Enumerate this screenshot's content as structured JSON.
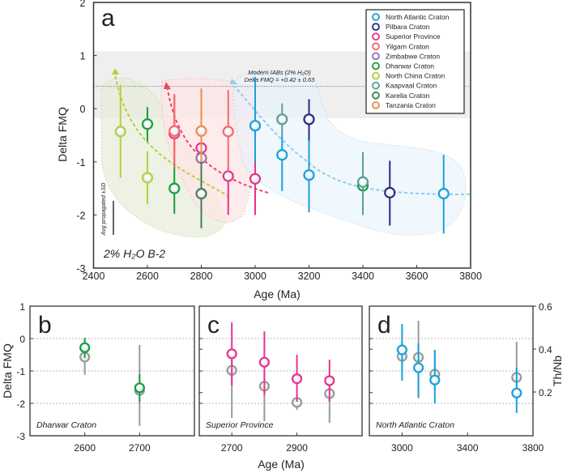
{
  "chart_data": [
    {
      "panel": "a",
      "type": "scatter",
      "panel_label": "a",
      "xlabel": "Age (Ma)",
      "ylabel": "Delta FMQ",
      "xlim": [
        2400,
        3800
      ],
      "ylim": [
        -3,
        2
      ],
      "xticks": [
        2400,
        2600,
        2800,
        3000,
        3200,
        3400,
        3600,
        3800
      ],
      "yticks": [
        -3,
        -2,
        -1,
        0,
        1,
        2
      ],
      "annotation_band": {
        "label_line1": "Modern IABs (2% H₂O)",
        "label_line2": "Delta FMQ = +0.42 ± 0.63",
        "center": 0.42,
        "range": [
          -0.18,
          1.08
        ]
      },
      "scale_bar_label": "Avg propagated ±SD",
      "condition_label": "2% H₂O B-2",
      "legend": "top-right",
      "series": [
        {
          "name": "North Atlantic Craton",
          "color": "#1aa0dc",
          "points": [
            [
              3000,
              -0.32,
              0.6,
              -2.0
            ],
            [
              3100,
              -0.87,
              -0.5,
              -1.55
            ],
            [
              3200,
              -1.25,
              -0.6,
              -1.95
            ],
            [
              3700,
              -1.6,
              -0.87,
              -2.35
            ]
          ]
        },
        {
          "name": "Pilbara Craton",
          "color": "#2e2a80",
          "points": [
            [
              3200,
              -0.2,
              0.18,
              -0.6
            ],
            [
              3500,
              -1.58,
              -0.98,
              -2.2
            ]
          ]
        },
        {
          "name": "Superior Province",
          "color": "#e8338a",
          "points": [
            [
              2700,
              -0.47,
              0.25,
              -1.1
            ],
            [
              2800,
              -0.74,
              -0.5,
              -1.1
            ],
            [
              2900,
              -1.27,
              -1.1,
              -2.0
            ],
            [
              3000,
              -1.32,
              -1.0,
              -2.0
            ]
          ]
        },
        {
          "name": "Yilgarn Craton",
          "color": "#f26a6a",
          "points": [
            [
              2700,
              -0.42,
              0.28,
              -1.1
            ],
            [
              2900,
              -0.43,
              0.35,
              -1.2
            ]
          ]
        },
        {
          "name": "Zimbabwe Craton",
          "color": "#a070b0",
          "points": [
            [
              2800,
              -0.93,
              -0.7,
              -1.2
            ]
          ]
        },
        {
          "name": "Dharwar Craton",
          "color": "#1a9e3f",
          "points": [
            [
              2600,
              -0.29,
              0.03,
              -0.62
            ],
            [
              2700,
              -1.5,
              -1.1,
              -1.98
            ],
            [
              3400,
              -1.45,
              -1.2,
              -1.7
            ]
          ]
        },
        {
          "name": "North China Craton",
          "color": "#b5cf3a",
          "points": [
            [
              2500,
              -0.43,
              0.45,
              -1.3
            ],
            [
              2600,
              -1.3,
              -0.8,
              -1.8
            ]
          ]
        },
        {
          "name": "Kaapvaal Craton",
          "color": "#5a9e9a",
          "points": [
            [
              3100,
              -0.2,
              0.1,
              -0.5
            ],
            [
              3400,
              -1.38,
              -0.82,
              -2.0
            ]
          ]
        },
        {
          "name": "Karelia Craton",
          "color": "#4a7a5a",
          "points": [
            [
              2800,
              -1.6,
              -0.85,
              -2.25
            ]
          ]
        },
        {
          "name": "Tanzania Craton",
          "color": "#f08c4a",
          "points": [
            [
              2800,
              -0.42,
              0.38,
              -1.0
            ]
          ]
        }
      ]
    },
    {
      "panel": "b",
      "type": "scatter",
      "panel_label": "b",
      "caption": "Dharwar Craton",
      "ylabel": "Delta FMQ",
      "xlim": [
        2500,
        2800
      ],
      "ylim": [
        -3,
        1
      ],
      "xticks": [
        2600,
        2700
      ],
      "yticks": [
        -3,
        -2,
        -1,
        0,
        1
      ],
      "series": [
        {
          "color": "#9a9a9a",
          "points": [
            [
              2600,
              -0.57,
              -0.05,
              -1.12
            ],
            [
              2700,
              -1.6,
              -0.2,
              -2.7
            ]
          ]
        },
        {
          "color": "#1a9e3f",
          "points": [
            [
              2600,
              -0.28,
              0.02,
              -0.6
            ],
            [
              2700,
              -1.52,
              -1.1,
              -1.95
            ]
          ]
        }
      ]
    },
    {
      "panel": "c",
      "type": "scatter",
      "panel_label": "c",
      "caption": "Superior Province",
      "xlabel": "Age (Ma)",
      "xlim": [
        2600,
        3100
      ],
      "ylim": [
        -3,
        1
      ],
      "xticks": [
        2700,
        2900
      ],
      "series": [
        {
          "color": "#9a9a9a",
          "points": [
            [
              2700,
              -0.98,
              -0.5,
              -2.45
            ],
            [
              2800,
              -1.47,
              -1.0,
              -2.55
            ],
            [
              2900,
              -1.97,
              -1.7,
              -2.2
            ],
            [
              3000,
              -1.7,
              -1.2,
              -2.6
            ]
          ]
        },
        {
          "color": "#e8338a",
          "points": [
            [
              2700,
              -0.47,
              0.5,
              -1.45
            ],
            [
              2800,
              -0.73,
              0.22,
              -1.75
            ],
            [
              2900,
              -1.24,
              -0.5,
              -1.95
            ],
            [
              3000,
              -1.3,
              -0.65,
              -1.95
            ]
          ]
        }
      ]
    },
    {
      "panel": "d",
      "type": "scatter",
      "panel_label": "d",
      "caption": "North Atlantic Craton",
      "xlim": [
        2800,
        3800
      ],
      "ylim": [
        -3,
        1
      ],
      "xticks": [
        3000,
        3400,
        3800
      ],
      "right_ylabel": "Th/Nb",
      "right_yticks": [
        "0.6",
        "0.4",
        "0.2"
      ],
      "series": [
        {
          "color": "#9a9a9a",
          "points": [
            [
              3000,
              -0.55,
              -0.1,
              -1.0
            ],
            [
              3100,
              -0.58,
              0.55,
              -1.85
            ],
            [
              3200,
              -1.1,
              -0.35,
              -1.6
            ],
            [
              3700,
              -1.2,
              -0.1,
              -1.7
            ]
          ]
        },
        {
          "color": "#1aa0dc",
          "points": [
            [
              3000,
              -0.35,
              0.45,
              -1.3
            ],
            [
              3100,
              -0.9,
              -0.15,
              -1.8
            ],
            [
              3200,
              -1.28,
              -0.35,
              -2.0
            ],
            [
              3700,
              -1.68,
              -0.9,
              -2.3
            ]
          ]
        }
      ]
    }
  ]
}
